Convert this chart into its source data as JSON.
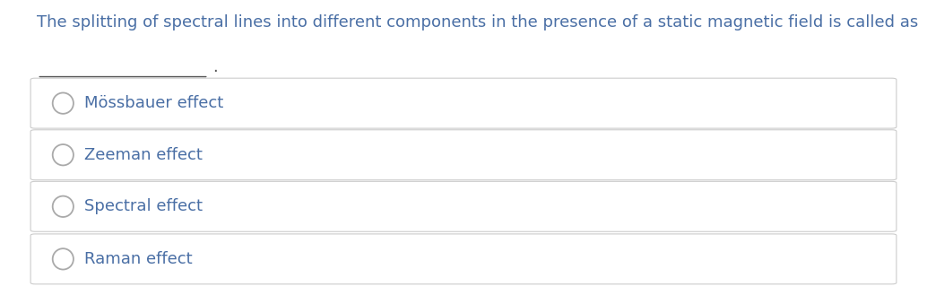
{
  "background_color": "#ffffff",
  "question_line1": "The splitting of spectral lines into different components in the presence of a static magnetic field is called as",
  "question_color": "#4a6fa5",
  "options": [
    "Mössbauer effect",
    "Zeeman effect",
    "Spectral effect",
    "Raman effect"
  ],
  "option_color": "#4a6fa5",
  "option_font_size": 13,
  "question_font_size": 13,
  "box_edge_color": "#cccccc",
  "circle_edge_color": "#aaaaaa",
  "figsize": [
    10.34,
    3.29
  ],
  "dpi": 100
}
